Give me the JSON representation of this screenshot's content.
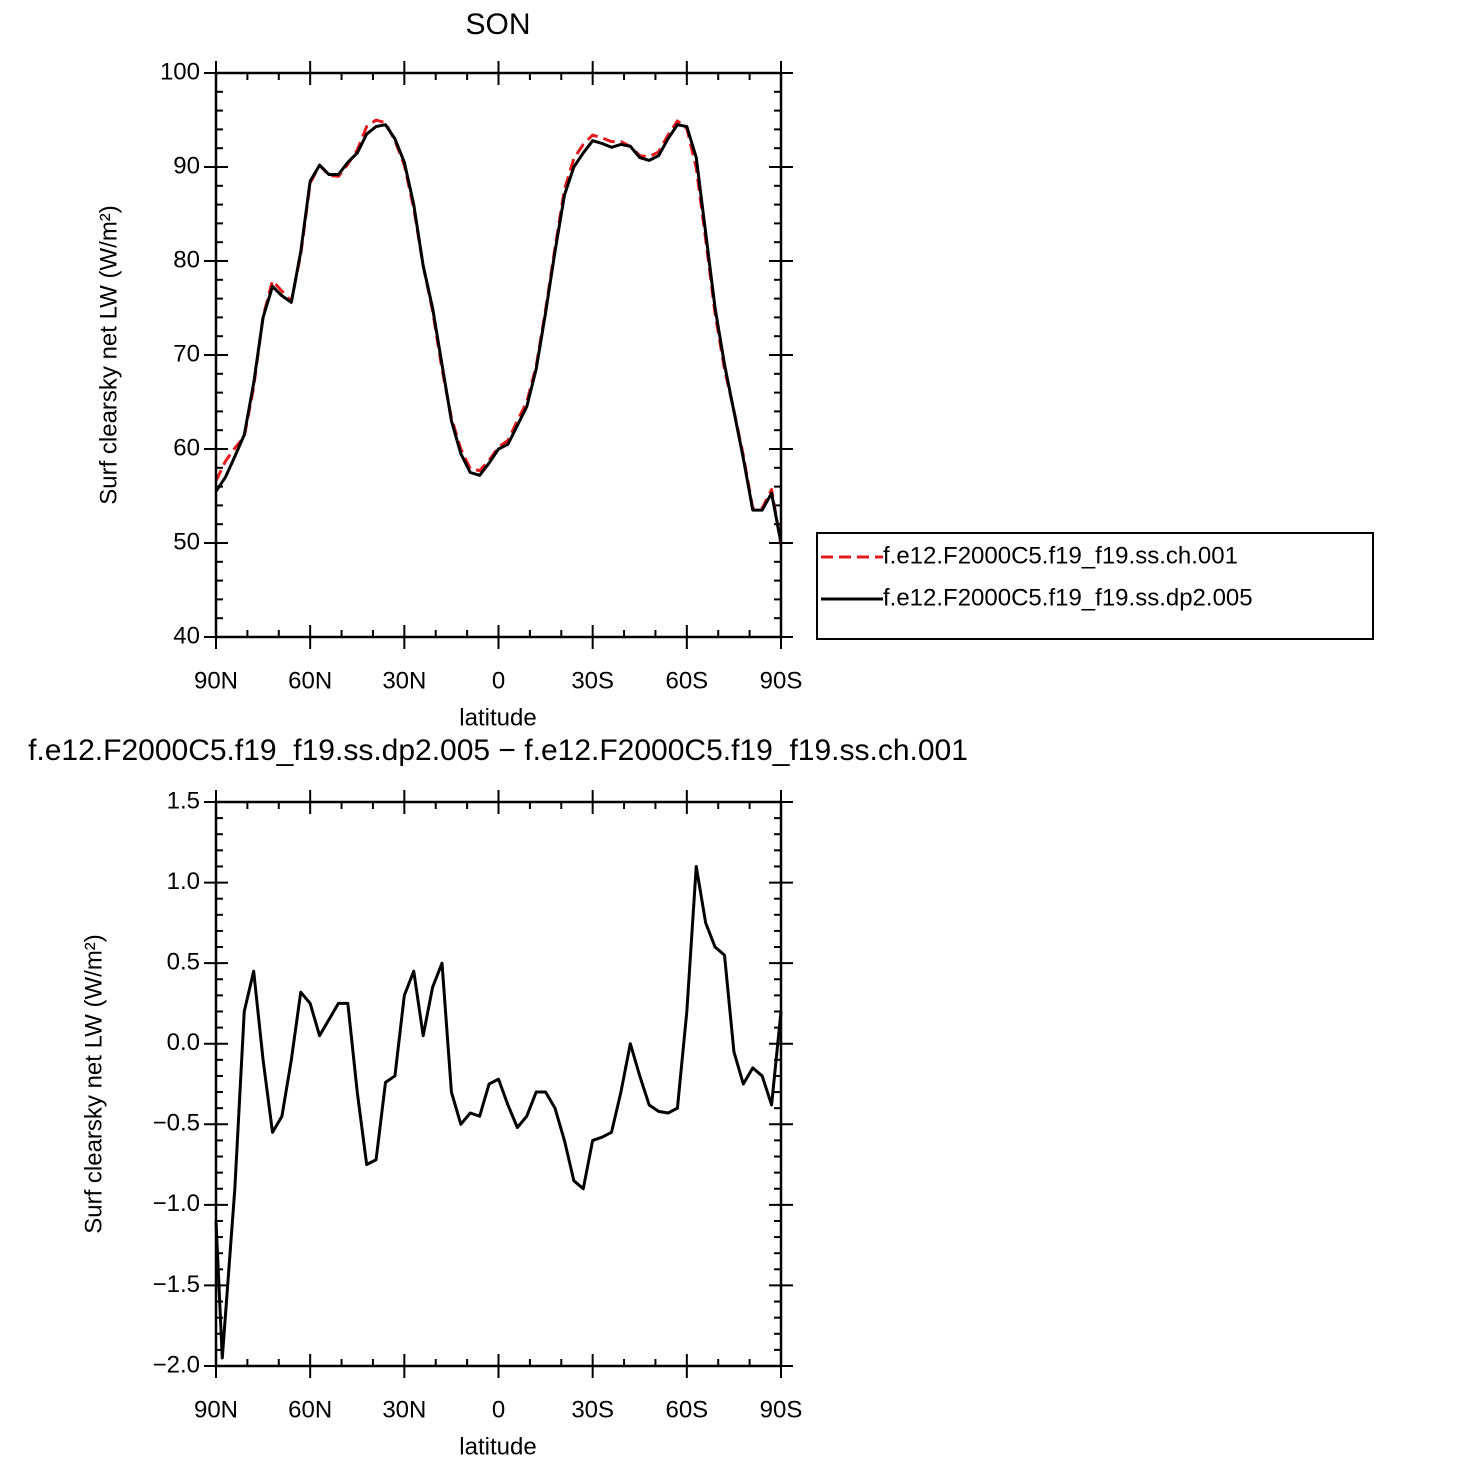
{
  "chart_data": [
    {
      "type": "line",
      "title": "SON",
      "xlabel": "latitude",
      "ylabel": "Surf clearsky net LW (W/m²)",
      "x": [
        90,
        87,
        84,
        81,
        78,
        75,
        72,
        69,
        66,
        63,
        60,
        57,
        54,
        51,
        48,
        45,
        42,
        39,
        36,
        33,
        30,
        27,
        24,
        21,
        18,
        15,
        12,
        9,
        6,
        3,
        0,
        -3,
        -6,
        -9,
        -12,
        -15,
        -18,
        -21,
        -24,
        -27,
        -30,
        -33,
        -36,
        -39,
        -42,
        -45,
        -48,
        -51,
        -54,
        -57,
        -60,
        -63,
        -66,
        -69,
        -72,
        -75,
        -78,
        -81,
        -84,
        -87,
        -90
      ],
      "series": [
        {
          "name": "f.e12.F2000C5.f19_f19.ss.ch.001",
          "color": "#e41a1c",
          "dash": true,
          "values": [
            56.6,
            58.7,
            60.1,
            61.3,
            66.6,
            74.1,
            77.9,
            76.8,
            75.7,
            80.7,
            88.3,
            90.2,
            89.1,
            89.0,
            90.3,
            91.8,
            94.3,
            95.0,
            94.7,
            92.8,
            90.2,
            85.6,
            79.5,
            74.7,
            68.5,
            63.3,
            60.0,
            57.9,
            57.7,
            58.8,
            60.2,
            60.9,
            63.0,
            65.0,
            68.8,
            74.8,
            81.4,
            87.6,
            90.9,
            92.4,
            93.4,
            93.1,
            92.7,
            92.7,
            92.2,
            91.2,
            91.1,
            91.6,
            93.4,
            94.9,
            94.1,
            89.9,
            82.3,
            74.4,
            68.5,
            64.1,
            59.3,
            53.7,
            53.7,
            55.7,
            49.8
          ]
        },
        {
          "name": "f.e12.F2000C5.f19_f19.ss.dp2.005",
          "color": "#000000",
          "dash": false,
          "values": [
            55.5,
            57,
            59.2,
            61.5,
            67,
            74,
            77.3,
            76.3,
            75.6,
            81,
            88.5,
            90.2,
            89.2,
            89.2,
            90.5,
            91.5,
            93.5,
            94.3,
            94.5,
            93,
            90.5,
            86,
            79.5,
            75,
            69,
            63,
            59.5,
            57.5,
            57.2,
            58.5,
            60,
            60.5,
            62.5,
            64.5,
            68.5,
            74.5,
            81,
            87,
            90,
            91.5,
            92.8,
            92.5,
            92.1,
            92.4,
            92.2,
            91,
            90.7,
            91.2,
            93,
            94.5,
            94.3,
            91,
            83,
            75,
            69,
            64,
            59,
            53.5,
            53.5,
            55.3,
            50
          ]
        }
      ],
      "xlim": [
        90,
        -90
      ],
      "xticks": [
        {
          "value": 90,
          "label": "90N"
        },
        {
          "value": 60,
          "label": "60N"
        },
        {
          "value": 30,
          "label": "30N"
        },
        0,
        {
          "value": -30,
          "label": "30S"
        },
        {
          "value": -60,
          "label": "60S"
        },
        {
          "value": -90,
          "label": "90S"
        }
      ],
      "ylim": [
        40,
        100
      ],
      "yticks": [
        40,
        50,
        60,
        70,
        80,
        90,
        100
      ],
      "legend": "outside-right"
    },
    {
      "type": "line",
      "title": "f.e12.F2000C5.f19_f19.ss.dp2.005 − f.e12.F2000C5.f19_f19.ss.ch.001",
      "xlabel": "latitude",
      "ylabel": "Surf clearsky net LW (W/m²)",
      "x": [
        90,
        88,
        84,
        81,
        78,
        75,
        72,
        69,
        66,
        63,
        60,
        57,
        54,
        51,
        48,
        45,
        42,
        39,
        36,
        33,
        30,
        27,
        24,
        21,
        18,
        15,
        12,
        9,
        6,
        3,
        0,
        -3,
        -6,
        -9,
        -12,
        -15,
        -18,
        -21,
        -24,
        -27,
        -30,
        -33,
        -36,
        -39,
        -42,
        -45,
        -48,
        -51,
        -54,
        -57,
        -60,
        -63,
        -66,
        -69,
        -72,
        -75,
        -78,
        -81,
        -84,
        -87,
        -90
      ],
      "series": [
        {
          "color": "#000000",
          "dash": false,
          "values": [
            -1.1,
            -1.95,
            -0.9,
            0.2,
            0.45,
            -0.1,
            -0.55,
            -0.45,
            -0.1,
            0.32,
            0.25,
            0.05,
            0.15,
            0.25,
            0.25,
            -0.3,
            -0.75,
            -0.72,
            -0.24,
            -0.2,
            0.3,
            0.45,
            0.05,
            0.35,
            0.5,
            -0.3,
            -0.5,
            -0.43,
            -0.45,
            -0.25,
            -0.22,
            -0.38,
            -0.52,
            -0.45,
            -0.3,
            -0.3,
            -0.4,
            -0.6,
            -0.85,
            -0.9,
            -0.6,
            -0.58,
            -0.55,
            -0.3,
            0.0,
            -0.2,
            -0.38,
            -0.42,
            -0.43,
            -0.4,
            0.2,
            1.1,
            0.75,
            0.6,
            0.55,
            -0.05,
            -0.25,
            -0.15,
            -0.2,
            -0.38,
            0.2
          ]
        }
      ],
      "xlim": [
        90,
        -90
      ],
      "xticks": [
        {
          "value": 90,
          "label": "90N"
        },
        {
          "value": 60,
          "label": "60N"
        },
        {
          "value": 30,
          "label": "30N"
        },
        0,
        {
          "value": -30,
          "label": "30S"
        },
        {
          "value": -60,
          "label": "60S"
        },
        {
          "value": -90,
          "label": "90S"
        }
      ],
      "ylim": [
        -2,
        1.5
      ],
      "yticks": [
        {
          "value": -2,
          "label": "−2.0"
        },
        {
          "value": -1.5,
          "label": "−1.5"
        },
        {
          "value": -1,
          "label": "−1.0"
        },
        {
          "value": -0.5,
          "label": "−0.5"
        },
        {
          "value": 0,
          "label": "0.0"
        },
        0.5,
        {
          "value": 1,
          "label": "1.0"
        },
        1.5
      ]
    }
  ]
}
